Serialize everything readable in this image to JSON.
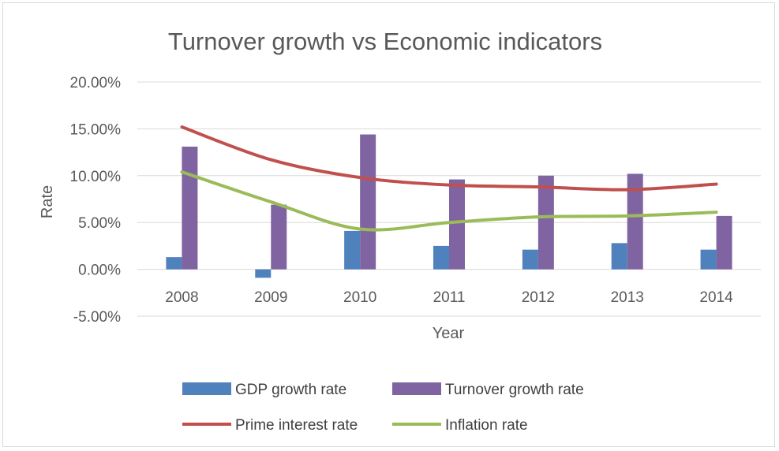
{
  "chart_data": {
    "type": "bar",
    "title": "Turnover growth vs Economic indicators",
    "xlabel": "Year",
    "ylabel": "Rate",
    "categories": [
      "2008",
      "2009",
      "2010",
      "2011",
      "2012",
      "2013",
      "2014"
    ],
    "y_ticks": [
      -0.05,
      0,
      0.05,
      0.1,
      0.15,
      0.2
    ],
    "y_tick_labels": [
      "-5.00%",
      "0.00%",
      "5.00%",
      "10.00%",
      "15.00%",
      "20.00%"
    ],
    "ylim": [
      -0.05,
      0.2
    ],
    "grid": true,
    "legend_position": "bottom",
    "series": [
      {
        "name": "GDP growth rate",
        "kind": "bar",
        "color": "#4f81bd",
        "values": [
          0.013,
          -0.009,
          0.041,
          0.025,
          0.021,
          0.028,
          0.021
        ]
      },
      {
        "name": "Turnover growth rate",
        "kind": "bar",
        "color": "#8064a2",
        "values": [
          0.131,
          0.069,
          0.144,
          0.096,
          0.1,
          0.102,
          0.057
        ]
      },
      {
        "name": "Prime interest rate",
        "kind": "line",
        "color": "#c0504d",
        "values": [
          0.152,
          0.117,
          0.098,
          0.09,
          0.088,
          0.085,
          0.091
        ]
      },
      {
        "name": "Inflation rate",
        "kind": "line",
        "color": "#9bbb59",
        "values": [
          0.104,
          0.072,
          0.043,
          0.05,
          0.056,
          0.057,
          0.061
        ]
      }
    ]
  }
}
